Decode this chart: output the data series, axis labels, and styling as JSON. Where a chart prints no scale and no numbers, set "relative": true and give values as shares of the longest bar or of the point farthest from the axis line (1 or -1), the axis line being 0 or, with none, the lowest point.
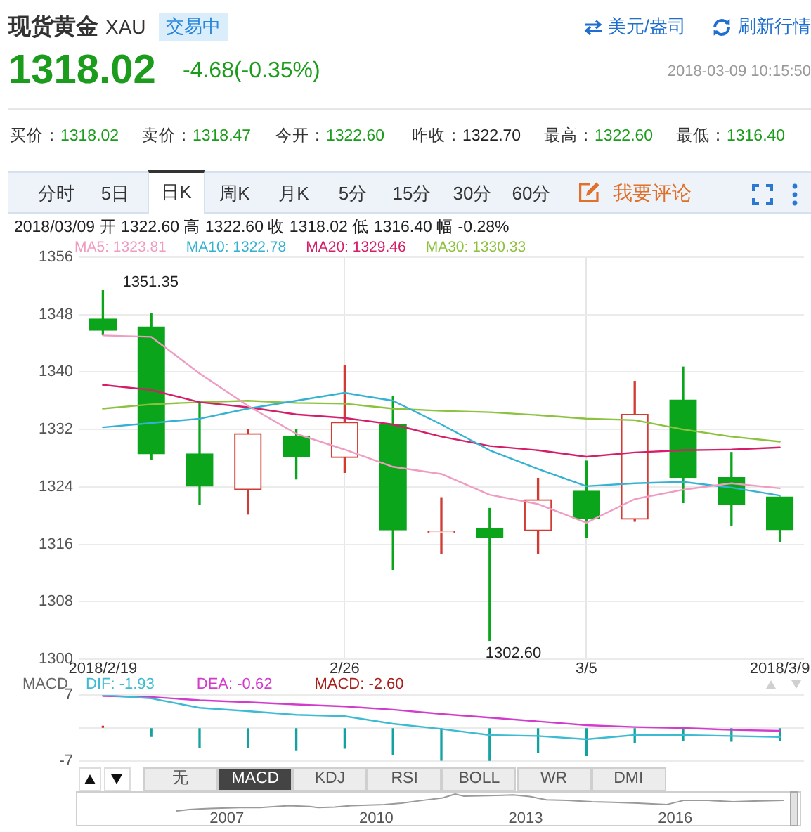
{
  "chart_data": [
    {
      "type": "candlestick",
      "title": "现货黄金",
      "subtitle": "XAU",
      "categories": [
        "2018/2/19",
        null,
        null,
        null,
        null,
        "2/26",
        null,
        null,
        null,
        null,
        "3/5",
        null,
        null,
        null,
        "2018/3/9"
      ],
      "ohlc": [
        [
          1347.4,
          1351.35,
          1345.2,
          1345.8
        ],
        [
          1346.3,
          1348.1,
          1327.8,
          1328.6
        ],
        [
          1328.6,
          1335.7,
          1321.6,
          1324.1
        ],
        [
          1323.6,
          1332.0,
          1320.2,
          1331.4
        ],
        [
          1331.1,
          1332.0,
          1325.1,
          1328.2
        ],
        [
          1328.1,
          1340.9,
          1326.0,
          1333.0
        ],
        [
          1332.7,
          1336.6,
          1312.5,
          1318.0
        ],
        [
          1317.6,
          1322.5,
          1314.7,
          1317.8
        ],
        [
          1318.2,
          1321.0,
          1302.6,
          1316.9
        ],
        [
          1317.9,
          1325.2,
          1314.7,
          1322.2
        ],
        [
          1323.4,
          1327.6,
          1317.0,
          1319.6
        ],
        [
          1319.5,
          1338.7,
          1319.2,
          1334.1
        ],
        [
          1336.1,
          1340.7,
          1321.8,
          1325.3
        ],
        [
          1325.3,
          1328.8,
          1318.6,
          1321.6
        ],
        [
          1322.6,
          1322.6,
          1316.4,
          1318.02
        ]
      ],
      "colors": [
        "#0aa51a",
        "#0aa51a",
        "#0aa51a",
        "#d23b33",
        "#0aa51a",
        "#d23b33",
        "#0aa51a",
        "#d23b33",
        "#0aa51a",
        "#d23b33",
        "#0aa51a",
        "#d23b33",
        "#0aa51a",
        "#0aa51a",
        "#0aa51a"
      ],
      "series": [
        {
          "name": "MA5: 1323.81",
          "type": "line",
          "color": "#f09cc2",
          "values": [
            1345.1,
            1344.9,
            1339.8,
            1335.3,
            1331.4,
            1329.2,
            1326.8,
            1325.8,
            1322.9,
            1321.6,
            1319.0,
            1322.3,
            1323.6,
            1324.5,
            1323.8
          ]
        },
        {
          "name": "MA10: 1322.78",
          "type": "line",
          "color": "#35b2d3",
          "values": [
            1332.3,
            1332.9,
            1333.5,
            1334.9,
            1336.0,
            1337.1,
            1336.0,
            1332.7,
            1329.1,
            1326.5,
            1324.1,
            1324.5,
            1324.7,
            1323.9,
            1322.8
          ]
        },
        {
          "name": "MA20: 1329.46",
          "type": "line",
          "color": "#d41f68",
          "values": [
            1338.2,
            1337.5,
            1335.8,
            1335.1,
            1334.1,
            1333.6,
            1332.7,
            1331.0,
            1329.7,
            1329.1,
            1328.2,
            1328.8,
            1329.1,
            1329.2,
            1329.5
          ]
        },
        {
          "name": "MA30: 1330.33",
          "type": "line",
          "color": "#8cc23f",
          "values": [
            1334.9,
            1335.5,
            1335.8,
            1336.0,
            1335.7,
            1335.6,
            1334.9,
            1334.6,
            1334.4,
            1334.0,
            1333.5,
            1333.3,
            1332.0,
            1331.0,
            1330.3
          ]
        }
      ],
      "ylim": [
        1300,
        1356
      ],
      "yticks": [
        1300,
        1308,
        1316,
        1324,
        1332,
        1340,
        1348,
        1356
      ],
      "grid": true,
      "legend": "top left",
      "marker": "none",
      "annotations": [
        "交易中",
        "美元/盎司",
        "刷新行情",
        "1318.02",
        "-4.68(-0.35%)",
        "2018-03-09 10:15:50",
        "买价：1318.02",
        "卖价：1318.47",
        "今开：1322.60",
        "昨收：1322.70",
        "最高：1322.60",
        "最低：1316.40",
        "分时",
        "5日",
        "日K",
        "周K",
        "月K",
        "5分",
        "15分",
        "30分",
        "60分",
        "我要评论",
        "2018/03/09 开 1322.60 高 1322.60 收 1318.02 低 1316.40 幅 -0.28%",
        {
          "text": "1351.35",
          "x": "2018/2/19",
          "y": 1351.35
        },
        "1302.60"
      ]
    },
    {
      "type": "bar",
      "title": "MACD",
      "categories": [
        null,
        null,
        null,
        null,
        null,
        null,
        null,
        null,
        null,
        null,
        null,
        null,
        null,
        null,
        null
      ],
      "series": [
        {
          "name": "DIF: -1.93",
          "type": "line",
          "color": "#3dbbd3",
          "values": [
            7.0,
            6.3,
            4.3,
            3.6,
            2.8,
            2.5,
            0.9,
            -0.2,
            -1.5,
            -1.7,
            -2.4,
            -1.5,
            -1.5,
            -1.7,
            -1.9
          ]
        },
        {
          "name": "DEA: -0.62",
          "type": "line",
          "color": "#d23ccc",
          "values": [
            6.8,
            6.6,
            5.9,
            5.5,
            5.0,
            4.6,
            3.9,
            3.0,
            2.2,
            1.4,
            0.6,
            0.2,
            0.0,
            -0.4,
            -0.6
          ]
        },
        {
          "name": "MACD: -2.60",
          "type": "bar",
          "color": "#a8201c",
          "colors": [
            "#d0302a",
            "#14a2a0",
            "#14a2a0",
            "#14a2a0",
            "#14a2a0",
            "#14a2a0",
            "#14a2a0",
            "#14a2a0",
            "#14a2a0",
            "#14a2a0",
            "#14a2a0",
            "#14a2a0",
            "#14a2a0",
            "#14a2a0",
            "#14a2a0"
          ],
          "values": [
            0.4,
            -1.8,
            -4.2,
            -4.2,
            -4.8,
            -4.3,
            -5.6,
            -6.9,
            -7.0,
            -5.3,
            -5.9,
            -3.1,
            -2.7,
            -2.8,
            -2.6
          ]
        }
      ],
      "ylim": [
        -7,
        7
      ],
      "yticks": [
        -7,
        {
          "value": 0,
          "label": null
        },
        7
      ],
      "grid": "y",
      "legend": "top left",
      "tick_labels": "y",
      "marker": "none",
      "annotations": [
        "无",
        "MACD",
        "KDJ",
        "RSI",
        "BOLL",
        "WR",
        "DMI"
      ]
    },
    {
      "type": "line",
      "relative": true,
      "x": [
        "2006-01",
        "2006-04",
        "2006-07",
        "2006-09",
        "2007-04",
        "2007-09",
        "2008-04",
        "2008-09",
        "2008-11",
        "2009-03",
        "2009-07",
        "2010-03",
        "2010-07",
        "2010-12",
        "2011-05",
        "2011-08",
        "2011-10",
        "2012-06",
        "2012-10",
        "2013-02",
        "2013-06",
        "2013-11",
        "2014-05",
        "2014-10",
        "2015-04",
        "2015-11",
        "2016-03",
        "2016-09",
        "2017-03",
        "2017-08",
        "2018-03"
      ],
      "values": [
        0,
        0.08,
        0.12,
        0.15,
        0.2,
        0.2,
        0.31,
        0.26,
        0.2,
        0.23,
        0.31,
        0.38,
        0.46,
        0.62,
        0.77,
        1,
        0.88,
        0.92,
        0.95,
        0.85,
        0.66,
        0.62,
        0.54,
        0.51,
        0.46,
        0.38,
        0.62,
        0.62,
        0.54,
        0.58,
        0.63
      ],
      "color": "#9a9a9a",
      "xlim": [
        "2004-01",
        "2018-07"
      ],
      "xticks": [
        "2007",
        "2010",
        "2013",
        "2016"
      ],
      "marker": "none"
    }
  ]
}
